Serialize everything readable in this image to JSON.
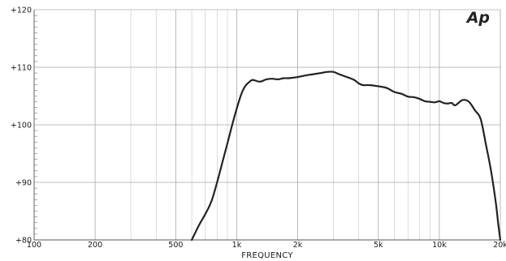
{
  "chart_data": {
    "type": "line",
    "title": "",
    "xlabel": "FREQUENCY",
    "ylabel": "",
    "x_scale": "log",
    "xlim": [
      100,
      20000
    ],
    "ylim": [
      80,
      120
    ],
    "grid": true,
    "x_ticks": [
      {
        "value": 100,
        "label": "100"
      },
      {
        "value": 200,
        "label": "200"
      },
      {
        "value": 500,
        "label": "500"
      },
      {
        "value": 1000,
        "label": "1k"
      },
      {
        "value": 2000,
        "label": "2k"
      },
      {
        "value": 5000,
        "label": "5k"
      },
      {
        "value": 10000,
        "label": "10k"
      },
      {
        "value": 20000,
        "label": "20k"
      }
    ],
    "y_ticks": [
      {
        "value": 80,
        "label": "+80"
      },
      {
        "value": 90,
        "label": "+90"
      },
      {
        "value": 100,
        "label": "+100"
      },
      {
        "value": 110,
        "label": "+110"
      },
      {
        "value": 120,
        "label": "+120"
      }
    ],
    "series": [
      {
        "color": "#222222",
        "x": [
          600,
          650,
          700,
          750,
          800,
          850,
          900,
          950,
          1000,
          1050,
          1100,
          1150,
          1200,
          1300,
          1400,
          1500,
          1600,
          1700,
          1800,
          1900,
          2000,
          2200,
          2400,
          2600,
          2800,
          3000,
          3200,
          3500,
          3800,
          4000,
          4200,
          4500,
          5000,
          5500,
          6000,
          6500,
          7000,
          7500,
          8000,
          8500,
          9000,
          9500,
          10000,
          10500,
          11000,
          11500,
          12000,
          13000,
          14000,
          15000,
          16000,
          17000,
          18000,
          19000,
          19500,
          20000
        ],
        "y": [
          80,
          82.5,
          84.5,
          86.7,
          90,
          93.5,
          96.8,
          100,
          102.8,
          105.2,
          106.7,
          107.4,
          107.8,
          107.5,
          107.9,
          108.0,
          107.9,
          108.1,
          108.1,
          108.2,
          108.3,
          108.6,
          108.8,
          109.0,
          109.2,
          109.2,
          108.8,
          108.3,
          107.8,
          107.2,
          106.9,
          106.9,
          106.7,
          106.4,
          105.7,
          105.4,
          104.9,
          104.8,
          104.5,
          104.1,
          104.0,
          103.9,
          104.1,
          103.8,
          103.7,
          103.8,
          103.4,
          104.3,
          104.0,
          102.5,
          101.0,
          96.5,
          92.0,
          86.5,
          83.0,
          80.0
        ]
      }
    ]
  },
  "logo": {
    "text": "Ap"
  }
}
